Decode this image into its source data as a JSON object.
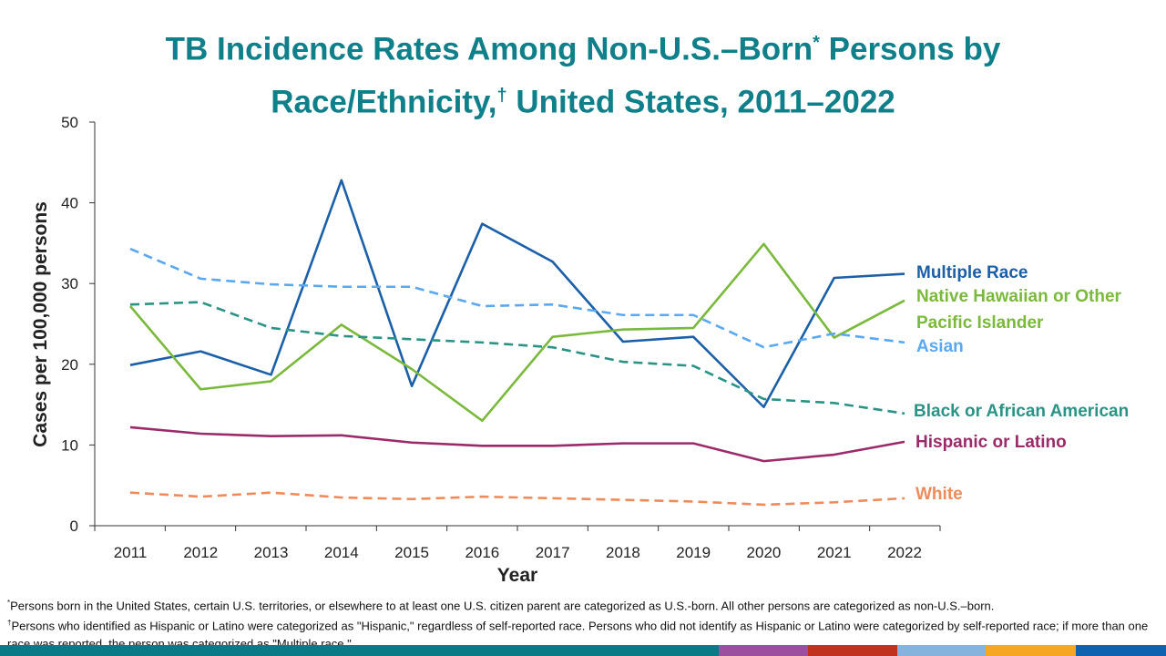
{
  "chart_data": {
    "type": "line",
    "title": "TB Incidence Rates Among Non-U.S.–Born* Persons by Race/Ethnicity,† United States, 2011–2022",
    "title_parts": {
      "a": "TB Incidence Rates Among Non-U.S.–Born",
      "star": "*",
      "b": " Persons by",
      "c": "Race/Ethnicity,",
      "dagger": "†",
      "d": " United States, 2011–2022"
    },
    "xlabel": "Year",
    "ylabel": "Cases per 100,000 persons",
    "ylim": [
      0,
      50
    ],
    "yticks": [
      0,
      10,
      20,
      30,
      40,
      50
    ],
    "categories": [
      "2011",
      "2012",
      "2013",
      "2014",
      "2015",
      "2016",
      "2017",
      "2018",
      "2019",
      "2020",
      "2021",
      "2022"
    ],
    "grid": false,
    "legend": "right, labels at line ends",
    "series": [
      {
        "name": "Multiple Race",
        "color": "#1b5fa8",
        "dash": false,
        "values": [
          19.9,
          21.6,
          18.7,
          42.8,
          17.3,
          37.4,
          32.7,
          22.8,
          23.4,
          14.7,
          30.7,
          31.2
        ]
      },
      {
        "name": "Native Hawaiian or Other Pacific Islander",
        "color": "#7ab93c",
        "dash": false,
        "values": [
          27.2,
          16.9,
          17.9,
          24.9,
          19.4,
          13.0,
          23.4,
          24.3,
          24.5,
          34.9,
          23.3,
          27.9
        ]
      },
      {
        "name": "Asian",
        "color": "#5aa8f0",
        "dash": true,
        "values": [
          34.3,
          30.6,
          29.9,
          29.6,
          29.6,
          27.2,
          27.4,
          26.1,
          26.1,
          22.1,
          23.8,
          22.7
        ]
      },
      {
        "name": "Black or African American",
        "color": "#2a9385",
        "dash": true,
        "values": [
          27.4,
          27.7,
          24.5,
          23.5,
          23.1,
          22.7,
          22.1,
          20.3,
          19.8,
          15.7,
          15.2,
          13.9
        ]
      },
      {
        "name": "Hispanic or Latino",
        "color": "#9b2a6a",
        "dash": false,
        "values": [
          12.2,
          11.4,
          11.1,
          11.2,
          10.3,
          9.9,
          9.9,
          10.2,
          10.2,
          8.0,
          8.8,
          10.4
        ]
      },
      {
        "name": "White",
        "color": "#ef8a5a",
        "dash": true,
        "values": [
          4.1,
          3.6,
          4.1,
          3.5,
          3.3,
          3.6,
          3.4,
          3.2,
          3.0,
          2.6,
          2.9,
          3.4
        ]
      }
    ]
  },
  "footnotes": {
    "star_mark": "*",
    "star": "Persons born in the United States, certain U.S. territories, or elsewhere to at least one U.S. citizen parent are categorized as U.S.-born. All other persons are categorized as non-U.S.–born.",
    "dagger_mark": "†",
    "dagger": "Persons who identified as Hispanic or Latino were categorized as \"Hispanic,\" regardless of self-reported race. Persons who did not identify as Hispanic or Latino were categorized by self-reported race; if more than one race was reported, the person was categorized as \"Multiple race.\""
  },
  "footer_bar_colors": [
    "#0a7b86",
    "#9b4f9e",
    "#c0321e",
    "#85b3dc",
    "#f5a623",
    "#0f62b0"
  ]
}
